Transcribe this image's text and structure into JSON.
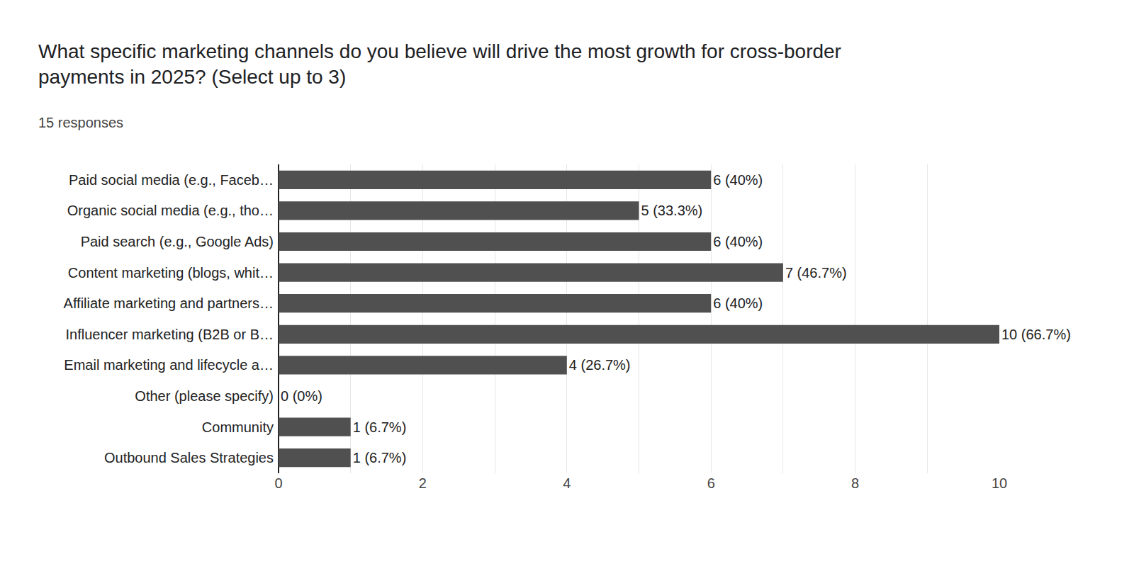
{
  "chart_data": {
    "type": "bar",
    "orientation": "horizontal",
    "title": "What specific marketing channels do you believe will drive the most growth for cross-border payments in 2025? (Select up to 3)",
    "subtitle": "15 responses",
    "categories": [
      "Paid social media (e.g., Faceb…",
      "Organic social media (e.g., tho…",
      "Paid search (e.g., Google Ads)",
      "Content marketing (blogs, whit…",
      "Affiliate marketing and partners…",
      "Influencer marketing (B2B or B…",
      "Email marketing and lifecycle a…",
      "Other (please specify)",
      "Community",
      "Outbound Sales Strategies"
    ],
    "values": [
      6,
      5,
      6,
      7,
      6,
      10,
      4,
      0,
      1,
      1
    ],
    "value_labels": [
      "6 (40%)",
      "5 (33.3%)",
      "6 (40%)",
      "7 (46.7%)",
      "6 (40%)",
      "10 (66.7%)",
      "4 (26.7%)",
      "0 (0%)",
      "1 (6.7%)",
      "1 (6.7%)"
    ],
    "data_labels": true,
    "color": "#505050",
    "xlim": [
      0,
      10
    ],
    "xticks": [
      0,
      2,
      4,
      6,
      8,
      10
    ],
    "grid": true
  }
}
